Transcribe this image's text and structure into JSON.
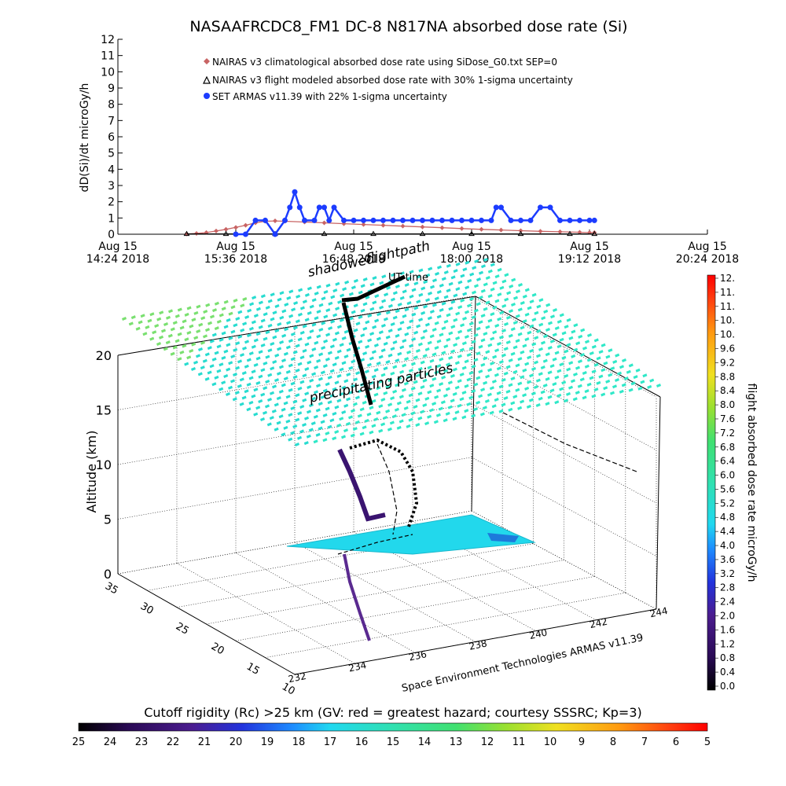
{
  "chart_data": [
    {
      "type": "line",
      "title": "NASAAFRCDC8_FM1 DC-8   N817NA absorbed dose rate (Si)",
      "ylabel": "dD(Si)/dt microGy/h",
      "ylim": [
        0,
        12
      ],
      "y_ticks": [
        "0",
        "1",
        "2",
        "3",
        "4",
        "5",
        "6",
        "7",
        "8",
        "9",
        "10",
        "11",
        "12"
      ],
      "x_ticks": [
        {
          "day": "Aug 15",
          "time": "14:24 2018"
        },
        {
          "day": "Aug 15",
          "time": "15:36 2018"
        },
        {
          "day": "Aug 15",
          "time": "16:48 2018"
        },
        {
          "day": "Aug 15",
          "time": "18:00 2018"
        },
        {
          "day": "Aug 15",
          "time": "19:12 2018"
        },
        {
          "day": "Aug 15",
          "time": "20:24 2018"
        }
      ],
      "xlim_hours": [
        14.4,
        20.4
      ],
      "legend_position": "top-left",
      "series": [
        {
          "name": "NAIRAS v3 climatological absorbed dose rate using SiDose_G0.txt SEP=0",
          "color": "#c86464",
          "marker": "diamond",
          "x": [
            15.1,
            15.2,
            15.3,
            15.4,
            15.5,
            15.6,
            15.7,
            15.8,
            15.9,
            16.0,
            16.1,
            16.3,
            16.5,
            16.7,
            16.9,
            17.1,
            17.3,
            17.5,
            17.7,
            17.9,
            18.1,
            18.3,
            18.5,
            18.7,
            18.9,
            19.1,
            19.2,
            19.25
          ],
          "values": [
            0.02,
            0.05,
            0.1,
            0.2,
            0.3,
            0.42,
            0.55,
            0.7,
            0.8,
            0.82,
            0.8,
            0.75,
            0.7,
            0.65,
            0.6,
            0.55,
            0.5,
            0.45,
            0.4,
            0.35,
            0.3,
            0.26,
            0.22,
            0.18,
            0.15,
            0.12,
            0.1,
            0.1
          ]
        },
        {
          "name": "NAIRAS v3 flight modeled absorbed dose rate with 30% 1-sigma uncertainty",
          "color": "#000000",
          "marker": "triangle",
          "x": [
            15.1,
            15.5,
            16.0,
            16.5,
            17.0,
            17.5,
            18.0,
            18.5,
            19.0,
            19.25
          ],
          "values": [
            0.02,
            0.02,
            0.02,
            0.02,
            0.02,
            0.02,
            0.02,
            0.02,
            0.02,
            0.02
          ]
        },
        {
          "name": "SET ARMAS v11.39 with 22% 1-sigma uncertainty",
          "color": "#1c3cff",
          "marker": "circle",
          "x": [
            15.6,
            15.7,
            15.8,
            15.9,
            16.0,
            16.1,
            16.15,
            16.2,
            16.25,
            16.3,
            16.4,
            16.45,
            16.5,
            16.55,
            16.6,
            16.7,
            16.8,
            16.9,
            17.0,
            17.1,
            17.2,
            17.3,
            17.4,
            17.5,
            17.6,
            17.7,
            17.8,
            17.9,
            18.0,
            18.1,
            18.2,
            18.25,
            18.3,
            18.4,
            18.5,
            18.6,
            18.7,
            18.8,
            18.9,
            19.0,
            19.1,
            19.2,
            19.25
          ],
          "values": [
            0,
            0,
            0.85,
            0.85,
            0,
            0.85,
            1.65,
            2.6,
            1.65,
            0.85,
            0.85,
            1.65,
            1.65,
            0.85,
            1.65,
            0.85,
            0.85,
            0.85,
            0.85,
            0.85,
            0.85,
            0.85,
            0.85,
            0.85,
            0.85,
            0.85,
            0.85,
            0.85,
            0.85,
            0.85,
            0.85,
            1.65,
            1.65,
            0.85,
            0.85,
            0.85,
            1.65,
            1.65,
            0.85,
            0.85,
            0.85,
            0.85,
            0.85
          ]
        }
      ]
    },
    {
      "type": "scatter",
      "subtype": "3d-trajectory",
      "zlabel": "Altitude (km)",
      "zlim": [
        0,
        20
      ],
      "z_ticks": [
        "0",
        "5",
        "10",
        "15",
        "20"
      ],
      "lat_ticks": [
        "10",
        "15",
        "20",
        "25",
        "30",
        "35"
      ],
      "lon_ticks": [
        "232",
        "234",
        "236",
        "238",
        "240",
        "242",
        "244"
      ],
      "annotations": [
        "shadowed",
        "flightpath",
        "UT time",
        "precipitating particles"
      ],
      "credit": "Space Environment Technologies ARMAS v11.39",
      "colorbar": {
        "label": "flight absorbed dose rate microGy/h",
        "ticks": [
          "12.",
          "11.",
          "11.",
          "10.",
          "10.",
          "9.6",
          "9.2",
          "8.8",
          "8.4",
          "8.0",
          "7.6",
          "7.2",
          "6.8",
          "6.4",
          "6.0",
          "5.6",
          "5.2",
          "4.8",
          "4.4",
          "4.0",
          "3.6",
          "3.2",
          "2.8",
          "2.4",
          "2.0",
          "1.6",
          "1.2",
          "0.8",
          "0.4",
          "0.0"
        ]
      },
      "bottom_colorbar": {
        "label": "Cutoff rigidity (Rc) >25 km (GV: red = greatest hazard; courtesy SSSRC; Kp=3)",
        "ticks": [
          "25",
          "24",
          "23",
          "22",
          "21",
          "20",
          "19",
          "18",
          "17",
          "16",
          "15",
          "14",
          "13",
          "12",
          "11",
          "10",
          "9",
          "8",
          "7",
          "6",
          "5"
        ]
      }
    }
  ]
}
